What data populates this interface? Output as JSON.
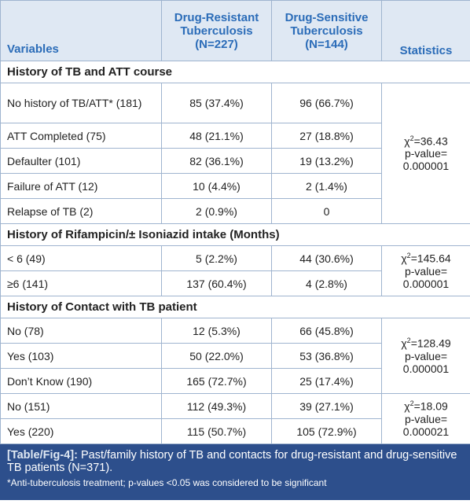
{
  "header": {
    "columns": [
      "Variables",
      "Drug-Resistant Tuberculosis (N=227)",
      "Drug-Sensitive Tuberculosis (N=144)",
      "Statistics"
    ]
  },
  "sections": [
    {
      "title": "History of TB and ATT course",
      "groups": [
        {
          "rows": [
            [
              "No history of TB/ATT* (181)",
              "85 (37.4%)",
              "96 (66.7%)"
            ],
            [
              "ATT Completed (75)",
              "48 (21.1%)",
              "27 (18.8%)"
            ],
            [
              "Defaulter (101)",
              "82 (36.1%)",
              "19 (13.2%)"
            ],
            [
              "Failure of ATT (12)",
              "10 (4.4%)",
              "2 (1.4%)"
            ],
            [
              "Relapse of TB (2)",
              "2 (0.9%)",
              "0"
            ]
          ],
          "statistic": {
            "symbol": "χ",
            "exponent": "2",
            "value": "=36.43",
            "p_label": "p-value=",
            "p_value": "0.000001"
          }
        }
      ]
    },
    {
      "title": "History of Rifampicin/± Isoniazid intake (Months)",
      "groups": [
        {
          "rows": [
            [
              "< 6 (49)",
              "5 (2.2%)",
              "44 (30.6%)"
            ],
            [
              "≥6 (141)",
              "137 (60.4%)",
              "4 (2.8%)"
            ]
          ],
          "statistic": {
            "symbol": "χ",
            "exponent": "2",
            "value": "=145.64",
            "p_label": "p-value=",
            "p_value": "0.000001"
          }
        }
      ]
    },
    {
      "title": "History of Contact with TB patient",
      "groups": [
        {
          "rows": [
            [
              "No (78)",
              "12 (5.3%)",
              "66 (45.8%)"
            ],
            [
              "Yes (103)",
              "50 (22.0%)",
              "53 (36.8%)"
            ],
            [
              "Don’t Know (190)",
              "165 (72.7%)",
              "25 (17.4%)"
            ]
          ],
          "statistic": {
            "symbol": "χ",
            "exponent": "2",
            "value": "=128.49",
            "p_label": "p-value=",
            "p_value": "0.000001"
          }
        },
        {
          "rows": [
            [
              "No (151)",
              "112 (49.3%)",
              "39 (27.1%)"
            ],
            [
              "Yes (220)",
              "115 (50.7%)",
              "105 (72.9%)"
            ]
          ],
          "statistic": {
            "symbol": "χ",
            "exponent": "2",
            "value": "=18.09",
            "p_label": "p-value=",
            "p_value": "0.000021"
          }
        }
      ]
    }
  ],
  "caption": {
    "label": "[Table/Fig-4]:",
    "text": "Past/family history of TB and contacts for drug-resistant and drug-sensitive TB patients (N=371).",
    "footnote": "*Anti-tuberculosis treatment; p-values <0.05 was considered to be significant"
  }
}
